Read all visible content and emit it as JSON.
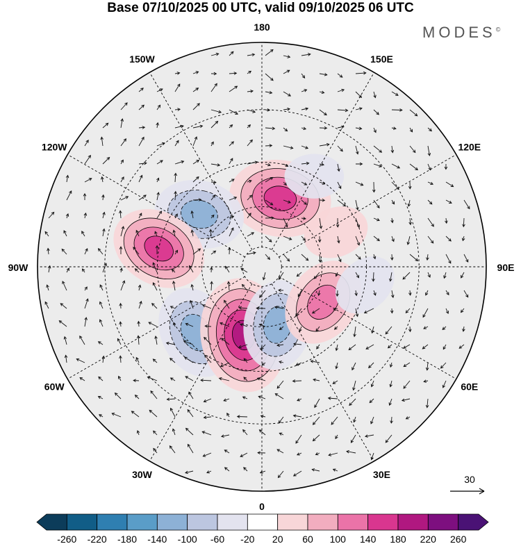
{
  "header": {
    "title": "Base 07/10/2025 00 UTC, valid 09/10/2025 06 UTC",
    "brand": "MODES",
    "brand_mark": "©"
  },
  "chart_data": {
    "type": "heatmap",
    "projection": "north polar stereographic",
    "title": "Base 07/10/2025 00 UTC, valid 09/10/2025 06 UTC",
    "longitude_labels": [
      {
        "text": "180",
        "lon": 180
      },
      {
        "text": "150E",
        "lon": 150
      },
      {
        "text": "120E",
        "lon": 120
      },
      {
        "text": "90E",
        "lon": 90
      },
      {
        "text": "60E",
        "lon": 60
      },
      {
        "text": "30E",
        "lon": 30
      },
      {
        "text": "0",
        "lon": 0
      },
      {
        "text": "30W",
        "lon": -30
      },
      {
        "text": "60W",
        "lon": -60
      },
      {
        "text": "90W",
        "lon": -90
      },
      {
        "text": "120W",
        "lon": -120
      },
      {
        "text": "150W",
        "lon": -150
      }
    ],
    "latitude_circles": [
      80,
      60,
      40,
      20
    ],
    "outer_latitude": 0,
    "vector_reference": {
      "label": "30"
    },
    "colorbar": {
      "ticks": [
        -260,
        -220,
        -180,
        -140,
        -100,
        -60,
        -20,
        20,
        60,
        100,
        140,
        180,
        220,
        260
      ],
      "colors": [
        "#0c3c5a",
        "#115d87",
        "#2f7fb1",
        "#5a9dc8",
        "#8db1d6",
        "#bcc6e0",
        "#e3e3ef",
        "#ffffff",
        "#f8d6d8",
        "#f2adbf",
        "#eb73a8",
        "#d9368f",
        "#b01880",
        "#7d0f7f",
        "#4a1275"
      ],
      "extend": "both"
    },
    "anomaly_centers": [
      {
        "sign": "positive",
        "value": 180,
        "lon": 165,
        "lat": 55
      },
      {
        "sign": "negative",
        "value": -140,
        "lon": -130,
        "lat": 50
      },
      {
        "sign": "positive",
        "value": 160,
        "lon": -100,
        "lat": 40
      },
      {
        "sign": "negative",
        "value": -150,
        "lon": -45,
        "lat": 45
      },
      {
        "sign": "positive",
        "value": 220,
        "lon": -15,
        "lat": 55
      },
      {
        "sign": "negative",
        "value": -140,
        "lon": 15,
        "lat": 60
      },
      {
        "sign": "positive",
        "value": 140,
        "lon": 60,
        "lat": 55
      },
      {
        "sign": "positive",
        "value": 60,
        "lon": 115,
        "lat": 50
      },
      {
        "sign": "negative",
        "value": -40,
        "lon": 150,
        "lat": 40
      },
      {
        "sign": "negative",
        "value": -60,
        "lon": 80,
        "lat": 40
      }
    ]
  }
}
